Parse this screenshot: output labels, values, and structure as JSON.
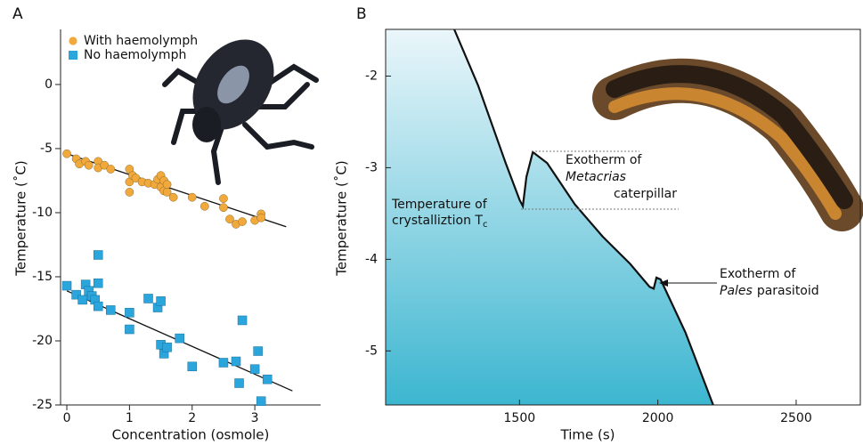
{
  "chart_data": [
    {
      "type": "scatter",
      "panel_label": "A",
      "xlabel": "Concentration (osmole)",
      "ylabel": "Temperature (˚C)",
      "xlim": [
        -0.1,
        4.05
      ],
      "ylim": [
        -25,
        4.3
      ],
      "xticks": [
        0,
        1,
        2,
        3
      ],
      "yticks": [
        0,
        -5,
        -10,
        -15,
        -20,
        -25
      ],
      "series": [
        {
          "name": "With haemolymph",
          "color": "#f2a93b",
          "marker": "circle",
          "x": [
            0,
            0.15,
            0.2,
            0.3,
            0.35,
            0.5,
            0.5,
            0.6,
            0.7,
            1.0,
            1.0,
            1.0,
            1.05,
            1.1,
            1.2,
            1.3,
            1.4,
            1.45,
            1.5,
            1.5,
            1.55,
            1.55,
            1.6,
            1.6,
            1.7,
            2.0,
            2.2,
            2.5,
            2.5,
            2.6,
            2.7,
            2.8,
            3.0,
            3.1,
            3.1
          ],
          "values": [
            -5.4,
            -5.8,
            -6.2,
            -6.0,
            -6.3,
            -6.0,
            -6.5,
            -6.3,
            -6.6,
            -6.6,
            -7.6,
            -8.4,
            -7.1,
            -7.3,
            -7.6,
            -7.7,
            -7.8,
            -7.4,
            -7.1,
            -8.0,
            -7.5,
            -8.3,
            -7.8,
            -8.4,
            -8.8,
            -8.8,
            -9.5,
            -8.9,
            -9.6,
            -10.5,
            -10.9,
            -10.7,
            -10.6,
            -10.1,
            -10.4
          ],
          "trend_x": [
            0,
            3.5
          ],
          "trend_values": [
            -5.4,
            -11.1
          ]
        },
        {
          "name": "No haemolymph",
          "color": "#2aa6dc",
          "marker": "square",
          "x": [
            0,
            0.15,
            0.25,
            0.3,
            0.35,
            0.4,
            0.45,
            0.5,
            0.5,
            0.5,
            0.7,
            1.0,
            1.0,
            1.3,
            1.45,
            1.5,
            1.5,
            1.55,
            1.6,
            1.8,
            2.0,
            2.5,
            2.7,
            2.8,
            2.75,
            3.0,
            3.05,
            3.1,
            3.2
          ],
          "values": [
            -15.7,
            -16.4,
            -16.8,
            -15.6,
            -16.1,
            -16.5,
            -16.8,
            -15.5,
            -17.3,
            -13.3,
            -17.6,
            -17.8,
            -19.1,
            -16.7,
            -17.4,
            -16.9,
            -20.3,
            -21.0,
            -20.5,
            -19.8,
            -22.0,
            -21.7,
            -21.6,
            -18.4,
            -23.3,
            -22.2,
            -20.8,
            -24.7,
            -23.0
          ],
          "trend_x": [
            0,
            3.6
          ],
          "trend_values": [
            -16.1,
            -23.9
          ]
        }
      ]
    },
    {
      "type": "line",
      "panel_label": "B",
      "xlabel": "Time (s)",
      "ylabel": "Temperature (˚C)",
      "xlim": [
        1016,
        2732
      ],
      "ylim": [
        -5.59,
        -1.49
      ],
      "xticks": [
        1500,
        2000,
        2500
      ],
      "yticks": [
        -2,
        -3,
        -4,
        -5
      ],
      "color": "#111111",
      "fill_gradient": [
        "#eaf6fa",
        "#3cb6d0"
      ],
      "x": [
        1264,
        1350,
        1450,
        1500,
        1512,
        1525,
        1548,
        1600,
        1700,
        1800,
        1900,
        1970,
        1985,
        1995,
        2010,
        2100,
        2200
      ],
      "values": [
        -1.49,
        -2.1,
        -2.95,
        -3.35,
        -3.42,
        -3.1,
        -2.83,
        -2.95,
        -3.4,
        -3.75,
        -4.05,
        -4.3,
        -4.32,
        -4.2,
        -4.22,
        -4.8,
        -5.59
      ],
      "annotations": [
        "Temperature of",
        "crystalliztion  T",
        "c",
        "Exotherm of",
        "Metacrias",
        "caterpillar",
        "Exotherm of",
        "Pales",
        "parasitoid"
      ]
    }
  ]
}
